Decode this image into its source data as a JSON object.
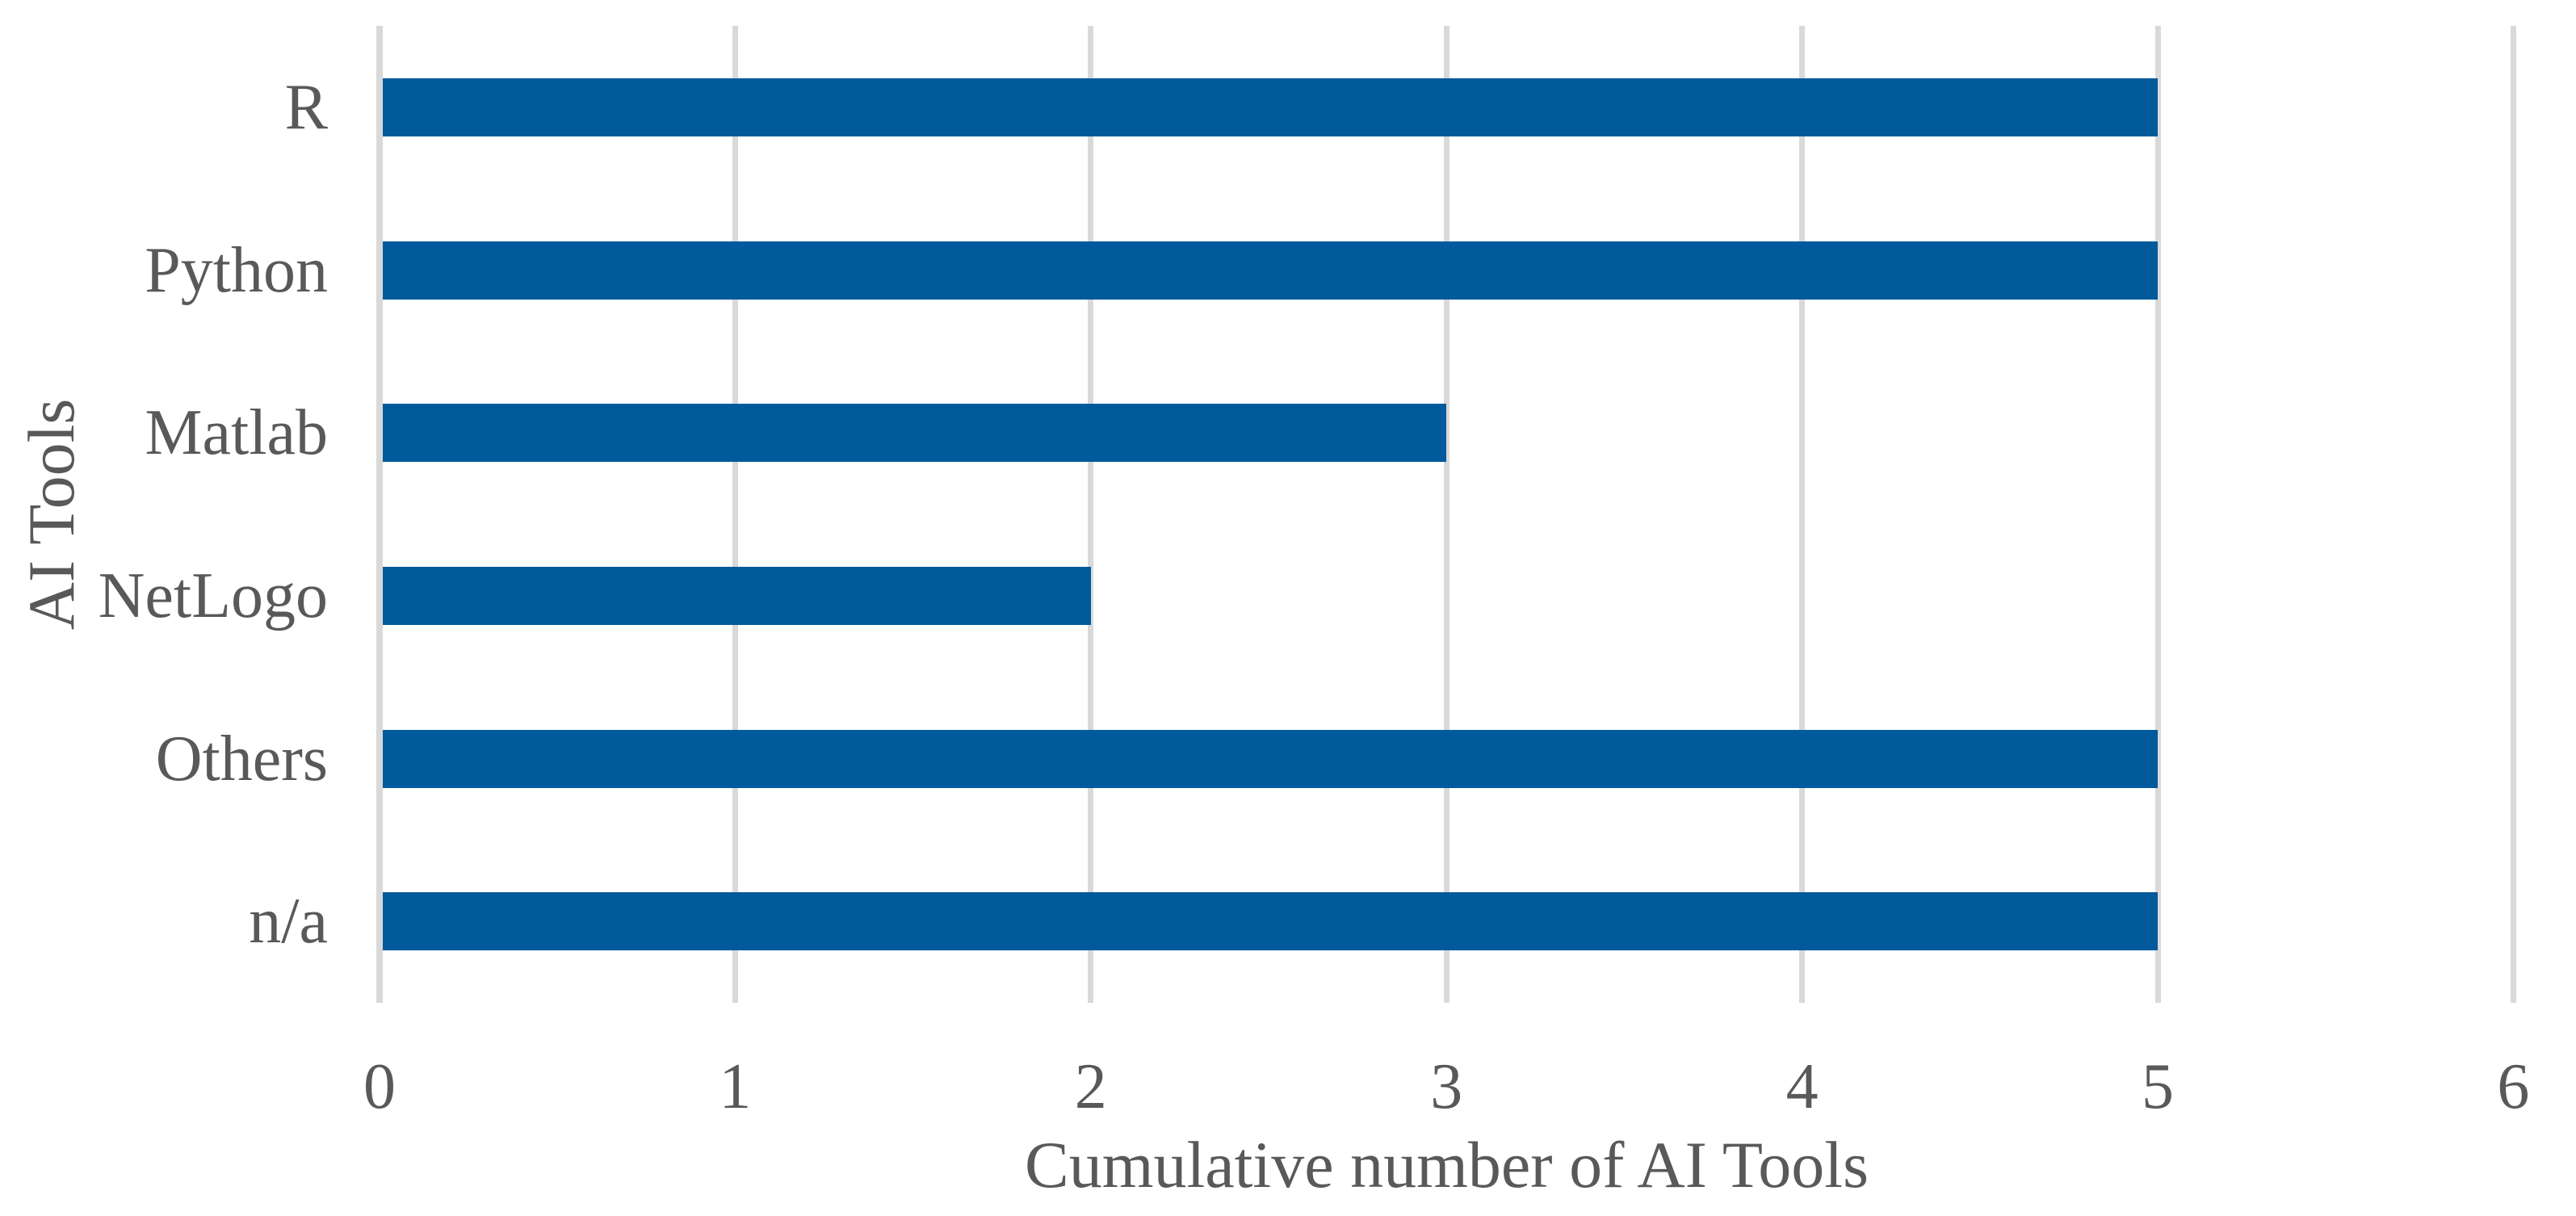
{
  "chart_data": {
    "type": "bar",
    "orientation": "horizontal",
    "title": "",
    "xlabel": "Cumulative number of AI Tools",
    "ylabel": "AI Tools",
    "categories": [
      "R",
      "Python",
      "Matlab",
      "NetLogo",
      "Others",
      "n/a"
    ],
    "values": [
      5,
      5,
      3,
      2,
      5,
      5
    ],
    "xlim": [
      0,
      6
    ],
    "xticks": [
      0,
      1,
      2,
      3,
      4,
      5,
      6
    ],
    "grid": true,
    "legend": "none",
    "colors": {
      "bar": "#005a9b",
      "gridline": "#d9d9d9",
      "axis_line": "#d9d9d9",
      "text": "#595959",
      "background": "#ffffff"
    }
  }
}
